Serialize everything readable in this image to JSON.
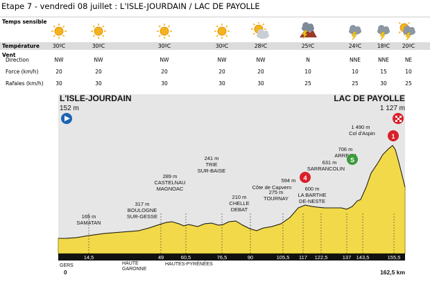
{
  "title": "Etape 7 - vendredi 08 juillet : L'ISLE-JOURDAIN / LAC DE PAYOLLE",
  "weather": {
    "section_sky": "Temps sensible",
    "section_temp": "Température",
    "section_wind": "Vent",
    "row_direction": "Direction",
    "row_force": "Force (km/h)",
    "row_gusts": "Rafales (km/h)",
    "points": [
      {
        "icon": "sun-icon",
        "temp": "30ºC",
        "dir": "NW",
        "force": "20",
        "gusts": "30"
      },
      {
        "icon": "sun-icon",
        "temp": "30ºC",
        "dir": "NW",
        "force": "20",
        "gusts": "30"
      },
      {
        "icon": "sun-icon",
        "temp": "30ºC",
        "dir": "NW",
        "force": "20",
        "gusts": "30"
      },
      {
        "icon": "sun-icon",
        "temp": "30ºC",
        "dir": "NW",
        "force": "20",
        "gusts": "30"
      },
      {
        "icon": "sun-cloud-icon",
        "temp": "28ºC",
        "dir": "NW",
        "force": "20",
        "gusts": "30"
      },
      {
        "icon": "mountain-storm-icon",
        "temp": "25ºC",
        "dir": "N",
        "force": "10",
        "gusts": "25"
      },
      {
        "icon": "cloud-storm-icon",
        "temp": "24ºC",
        "dir": "NNE",
        "force": "10",
        "gusts": "25"
      },
      {
        "icon": "cloud-storm-icon",
        "temp": "18ºC",
        "dir": "NNE",
        "force": "15",
        "gusts": "30"
      },
      {
        "icon": "sun-cloud-storm-icon",
        "temp": "20ºC",
        "dir": "NE",
        "force": "10",
        "gusts": "25"
      }
    ]
  },
  "profile": {
    "start_name": "L'ISLE-JOURDAIN",
    "start_alt": "152 m",
    "finish_name": "LAC DE PAYOLLE",
    "finish_alt": "1 127 m",
    "total": "162,5 km",
    "start_km": "0",
    "dept_gers": "GERS",
    "dept_hg1": "HAUTE",
    "dept_hg2": "GARONNE",
    "dept_hp": "HAUTES-PYRÉNÉES",
    "colors": {
      "terrain": "#f2d94a",
      "sky": "#e6e6e6",
      "axis": "#111111",
      "start": "#1d63b4",
      "climb": "#d9202b",
      "sprint": "#3a9b3a"
    },
    "km_labels": [
      "14,5",
      "49",
      "60,5",
      "76,5",
      "90",
      "105,5",
      "117",
      "122,5",
      "137",
      "143,5",
      "155,5"
    ],
    "places": [
      {
        "alt": "165 m",
        "name1": "SAMATAN",
        "name2": ""
      },
      {
        "alt": "317 m",
        "name1": "BOULOGNE",
        "name2": "SUR-GESSE"
      },
      {
        "alt": "289 m",
        "name1": "CASTELNAU",
        "name2": "MAGNOAC"
      },
      {
        "alt": "241 m",
        "name1": "TRIE",
        "name2": "SUR-BAISE"
      },
      {
        "alt": "210 m",
        "name1": "CHELLE",
        "name2": "DEBAT"
      },
      {
        "alt": "275 m",
        "name1": "TOURNAY",
        "name2": ""
      },
      {
        "alt": "600 m",
        "name1": "LA BARTHE",
        "name2": "DE-NESTE"
      },
      {
        "alt": "706 m",
        "name1": "ARREAU",
        "name2": ""
      }
    ],
    "climb4": {
      "alt": "594 m",
      "name": "Côte de Capvern",
      "cat": "4"
    },
    "sprint": {
      "alt": "631 m",
      "name": "SARRANCOLIN",
      "mark": "S"
    },
    "climb1": {
      "alt": "1 490 m",
      "name": "Col d'Aspin",
      "cat": "1"
    }
  }
}
